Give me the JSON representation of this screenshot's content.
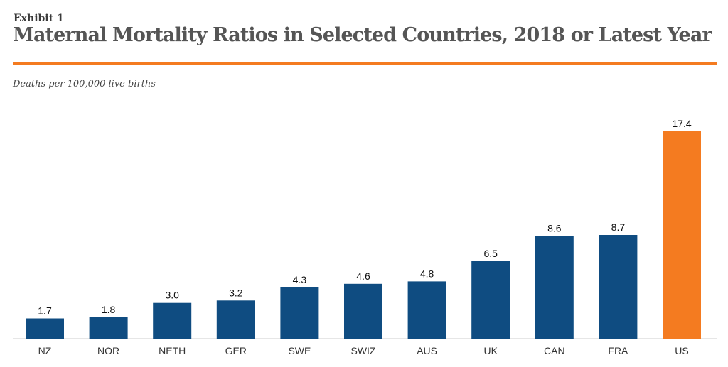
{
  "header": {
    "exhibit": "Exhibit 1",
    "title": "Maternal Mortality Ratios in Selected Countries, 2018 or Latest Year",
    "subtitle": "Deaths per 100,000 live births"
  },
  "colors": {
    "accent": "#f47b20",
    "bar_default": "#0f4c81",
    "bar_highlight": "#f47b20"
  },
  "chart_data": {
    "type": "bar",
    "title": "Maternal Mortality Ratios in Selected Countries, 2018 or Latest Year",
    "ylabel": "Deaths per 100,000 live births",
    "xlabel": "",
    "categories": [
      "NZ",
      "NOR",
      "NETH",
      "GER",
      "SWE",
      "SWIZ",
      "AUS",
      "UK",
      "CAN",
      "FRA",
      "US"
    ],
    "values": [
      1.7,
      1.8,
      3.0,
      3.2,
      4.3,
      4.6,
      4.8,
      6.5,
      8.6,
      8.7,
      17.4
    ],
    "value_labels": [
      "1.7",
      "1.8",
      "3.0",
      "3.2",
      "4.3",
      "4.6",
      "4.8",
      "6.5",
      "8.6",
      "8.7",
      "17.4"
    ],
    "highlight": "US",
    "ylim": [
      0,
      17.4
    ],
    "grid": false,
    "legend": "none"
  }
}
